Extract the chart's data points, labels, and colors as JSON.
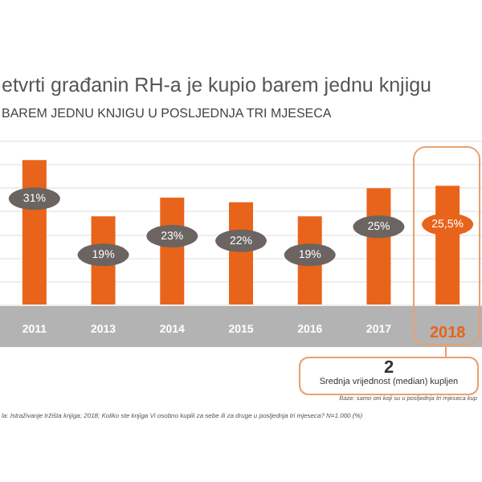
{
  "chart_data": {
    "type": "bar",
    "title": "etvrti građanin RH-a je kupio barem jednu knjigu",
    "subtitle": "BAREM JEDNU KNJIGU U POSLJEDNJA TRI MJESECA",
    "categories": [
      "2011",
      "2013",
      "2014",
      "2015",
      "2016",
      "2017",
      "2018"
    ],
    "values": [
      31,
      19,
      23,
      22,
      19,
      25,
      25.5
    ],
    "value_labels": [
      "31%",
      "19%",
      "23%",
      "22%",
      "19%",
      "25%",
      "25,5%"
    ],
    "color": "#e8641b",
    "grid": "y",
    "tick_labels": "x",
    "annotations": [
      "2",
      "Srednja vrijednost (median) kupljen",
      "Baze: samo oni koji su u posljednja tri mjeseca kup",
      "la: Istraživanje tržišta knjiga; 2018; Koliko ste knjiga Vi osobno kupili za sebe ili za druge u posljednja tri mjeseca? N=1.000 (%)"
    ]
  }
}
